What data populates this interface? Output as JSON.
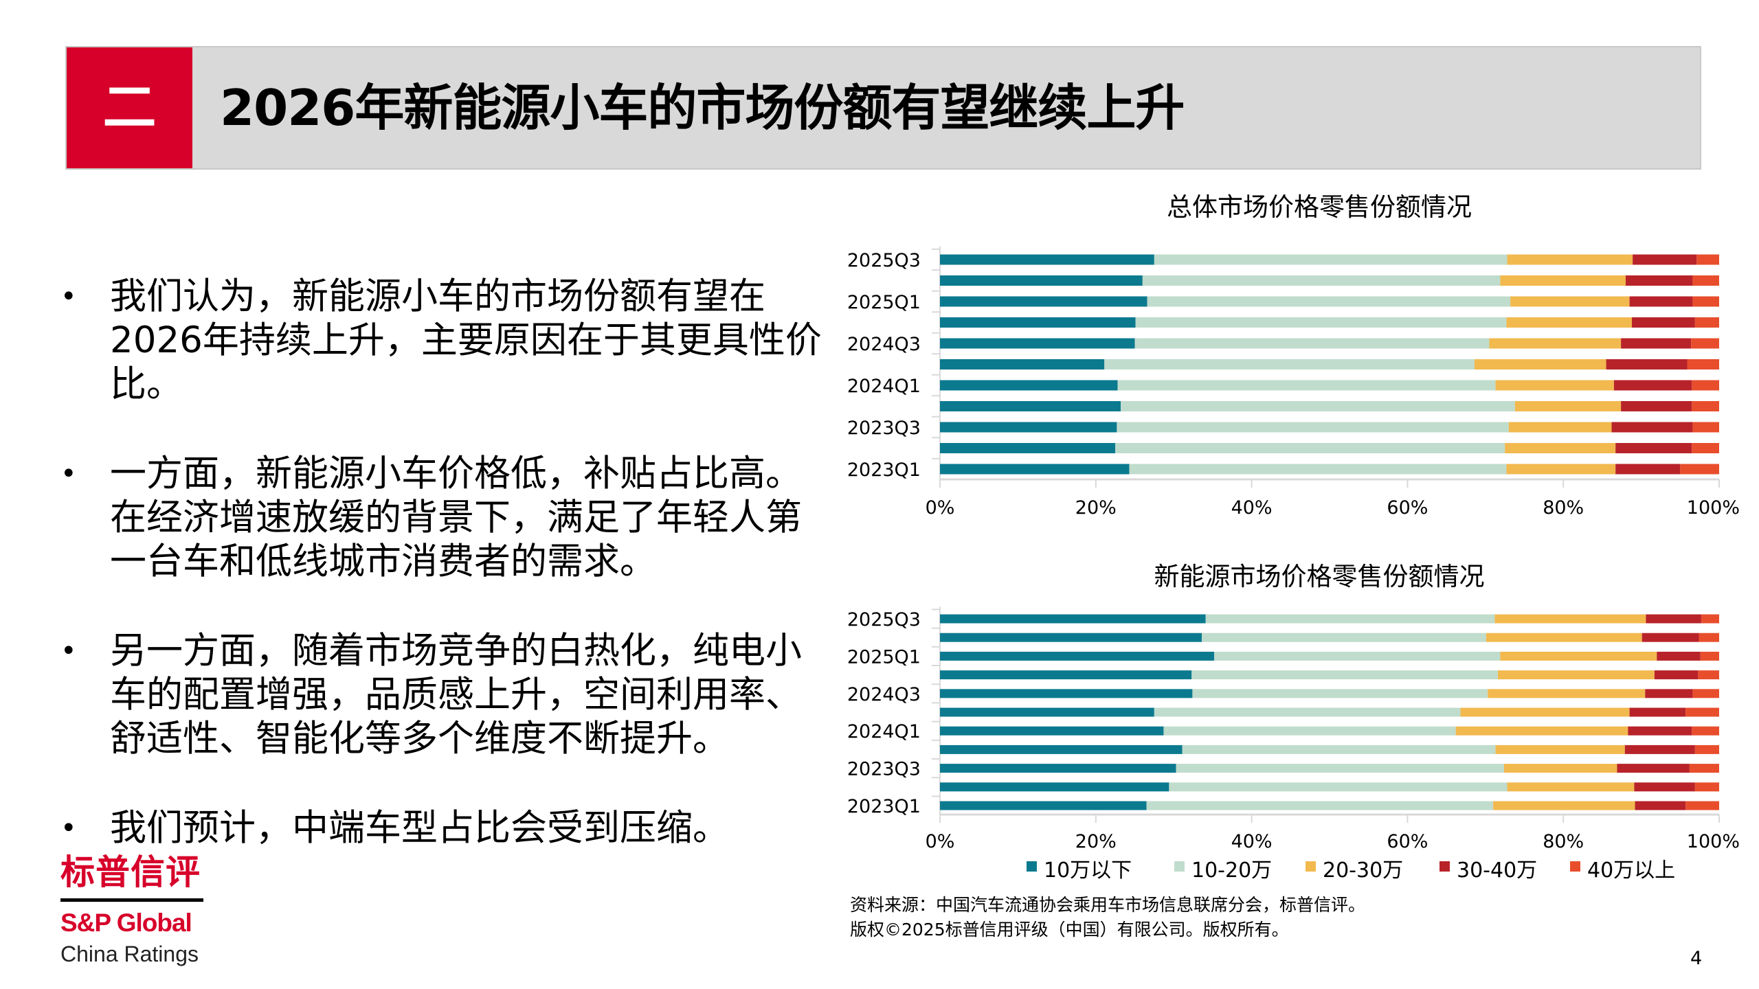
{
  "header": {
    "section_number": "二",
    "title": "2026年新能源小车的市场份额有望继续上升"
  },
  "bullets": [
    "我们认为，新能源小车的市场份额有望在2026年持续上升，主要原因在于其更具性价比。",
    "一方面，新能源小车价格低，补贴占比高。在经济增速放缓的背景下，满足了年轻人第一台车和低线城市消费者的需求。",
    "另一方面，随着市场竞争的白热化，纯电小车的配置增强，品质感上升，空间利用率、舒适性、智能化等多个维度不断提升。",
    "我们预计，中端车型占比会受到压缩。"
  ],
  "logo": {
    "cn": "标普信评",
    "en": "S&P Global",
    "sub": "China Ratings"
  },
  "source": {
    "line1": "资料来源：中国汽车流通协会乘用车市场信息联席分会，标普信评。",
    "line2": "版权©2025标普信用评级（中国）有限公司。版权所有。"
  },
  "page_number": "4",
  "legend": {
    "items": [
      {
        "label": "10万以下",
        "color": "#0b7a8f"
      },
      {
        "label": "10-20万",
        "color": "#c0dccd"
      },
      {
        "label": "20-30万",
        "color": "#f2b94f"
      },
      {
        "label": "30-40万",
        "color": "#b8232a"
      },
      {
        "label": "40万以上",
        "color": "#e84e2c"
      }
    ]
  },
  "chart_data": [
    {
      "type": "bar",
      "orientation": "horizontal",
      "stacked": "percent",
      "title": "总体市场价格零售份额情况",
      "categories": [
        "2025Q3",
        "",
        "2025Q1",
        "",
        "2024Q3",
        "",
        "2024Q1",
        "",
        "2023Q3",
        "",
        "2023Q1"
      ],
      "xlim": [
        0,
        100
      ],
      "xticks": [
        "0%",
        "20%",
        "40%",
        "60%",
        "80%",
        "100%"
      ],
      "legend": "bottom",
      "series": [
        {
          "name": "10万以下",
          "values": [
            27.5,
            26.0,
            26.6,
            25.1,
            25.0,
            21.1,
            22.8,
            23.2,
            22.7,
            22.5,
            24.3
          ]
        },
        {
          "name": "10-20万",
          "values": [
            45.3,
            45.9,
            46.6,
            47.6,
            45.5,
            47.5,
            48.5,
            50.6,
            50.3,
            50.0,
            48.4
          ]
        },
        {
          "name": "20-30万",
          "values": [
            16.1,
            16.1,
            15.3,
            16.1,
            16.9,
            16.9,
            15.2,
            13.6,
            13.2,
            14.2,
            14.0
          ]
        },
        {
          "name": "30-40万",
          "values": [
            8.2,
            8.6,
            8.1,
            8.1,
            9.0,
            10.4,
            10.0,
            9.1,
            10.4,
            9.8,
            8.3
          ]
        },
        {
          "name": "40万以上",
          "values": [
            2.9,
            3.4,
            3.4,
            3.1,
            3.6,
            4.1,
            3.5,
            3.5,
            3.4,
            3.5,
            5.0
          ]
        }
      ]
    },
    {
      "type": "bar",
      "orientation": "horizontal",
      "stacked": "percent",
      "title": "新能源市场价格零售份额情况",
      "categories": [
        "2025Q3",
        "",
        "2025Q1",
        "",
        "2024Q3",
        "",
        "2024Q1",
        "",
        "2023Q3",
        "",
        "2023Q1"
      ],
      "xlim": [
        0,
        100
      ],
      "xticks": [
        "0%",
        "20%",
        "40%",
        "60%",
        "80%",
        "100%"
      ],
      "legend": "bottom",
      "series": [
        {
          "name": "10万以下",
          "values": [
            34.1,
            33.6,
            35.2,
            32.3,
            32.4,
            27.5,
            28.7,
            31.1,
            30.3,
            29.4,
            26.5
          ]
        },
        {
          "name": "10-20万",
          "values": [
            37.1,
            36.5,
            36.7,
            39.3,
            37.9,
            39.3,
            37.5,
            40.2,
            42.1,
            43.4,
            44.5
          ]
        },
        {
          "name": "20-30万",
          "values": [
            19.4,
            20.0,
            20.1,
            20.1,
            20.2,
            21.7,
            22.1,
            16.6,
            14.5,
            16.3,
            18.2
          ]
        },
        {
          "name": "30-40万",
          "values": [
            7.1,
            7.3,
            5.6,
            5.6,
            6.1,
            7.2,
            8.2,
            9.0,
            9.3,
            7.8,
            6.5
          ]
        },
        {
          "name": "40万以上",
          "values": [
            2.3,
            2.6,
            2.4,
            2.7,
            3.4,
            4.3,
            3.5,
            3.1,
            3.8,
            3.1,
            4.3
          ]
        }
      ]
    }
  ]
}
